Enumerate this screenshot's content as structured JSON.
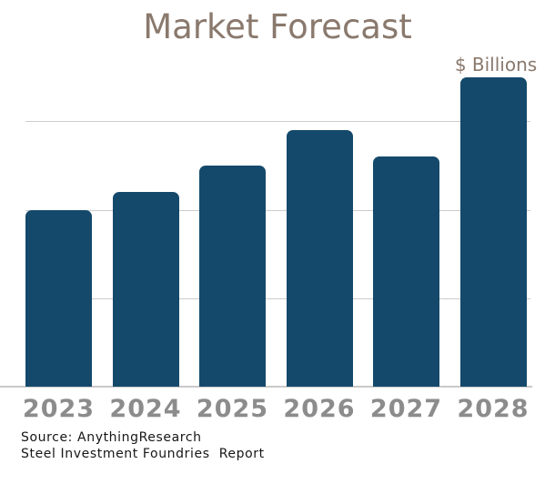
{
  "chart_data": {
    "type": "bar",
    "title": "Market Forecast",
    "value_axis_label": "$ Billions",
    "xlabel": "",
    "ylabel": "",
    "categories": [
      "2023",
      "2024",
      "2025",
      "2026",
      "2027",
      "2028"
    ],
    "values": [
      2.0,
      2.2,
      2.5,
      2.9,
      2.6,
      3.5
    ],
    "ylim": [
      0,
      4
    ],
    "gridlines_at": [
      1,
      2,
      3
    ],
    "grid": "horizontal, no y-axis tick labels",
    "legend_position": "none",
    "bar_color": "#14496b",
    "title_color": "#8a796d",
    "tick_label_color": "#8c8c8c"
  },
  "footer": {
    "source_line1": "Source: AnythingResearch",
    "source_line2": "Steel Investment Foundries  Report"
  }
}
